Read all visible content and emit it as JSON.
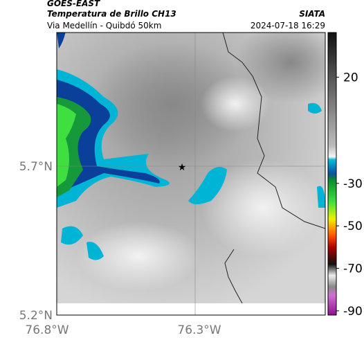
{
  "header": {
    "satellite": "GOES-EAST",
    "product": "Temperatura de Brillo CH13",
    "agency": "SIATA",
    "location": "Via Medellín - Quibdó 50km",
    "datetime": "2024-07-18 16:29"
  },
  "map": {
    "lat_labels": [
      "5.7°N",
      "5.2°N"
    ],
    "lon_labels": [
      "76.8°W",
      "76.3°W"
    ]
  },
  "colorbar": {
    "range": [
      -92,
      41
    ],
    "ticks": [
      20,
      -30,
      -50,
      -70,
      -90
    ]
  }
}
